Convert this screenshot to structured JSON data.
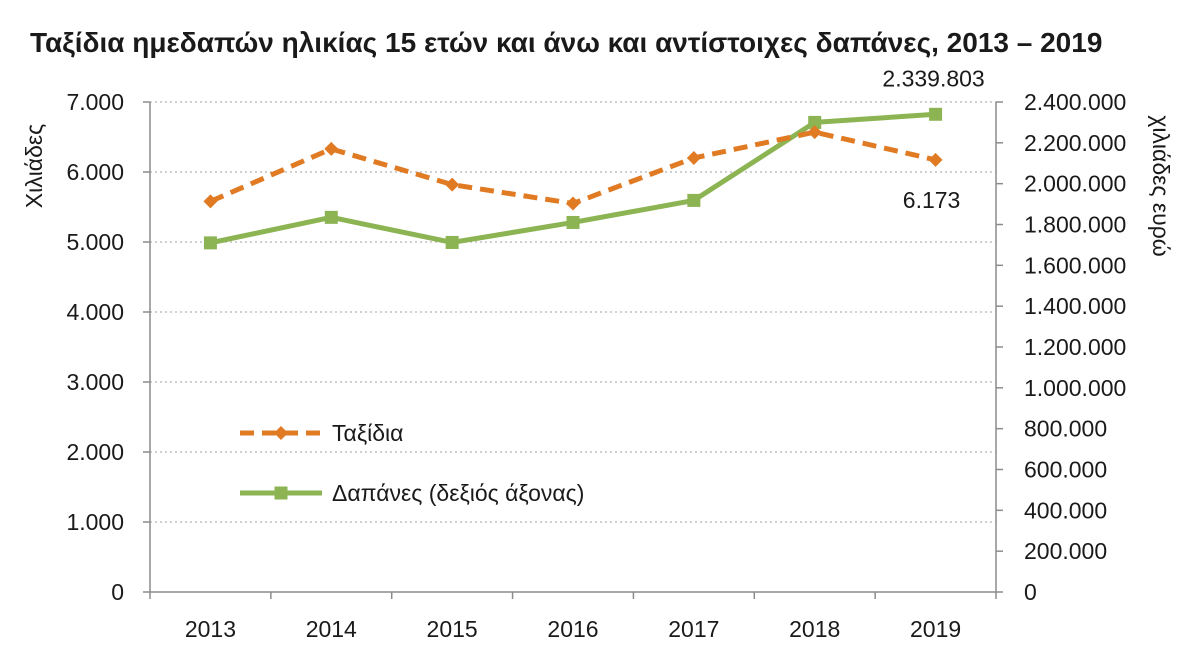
{
  "chart_data": {
    "type": "line",
    "title": "Ταξίδια ημεδαπών ηλικίας 15 ετών και άνω και αντίστοιχες δαπάνες, 2013 – 2019",
    "categories": [
      "2013",
      "2014",
      "2015",
      "2016",
      "2017",
      "2018",
      "2019"
    ],
    "y_left": {
      "label": "Χιλιάδες",
      "range": [
        0,
        7000
      ],
      "ticks": [
        "0",
        "1.000",
        "2.000",
        "3.000",
        "4.000",
        "5.000",
        "6.000",
        "7.000"
      ]
    },
    "y_right": {
      "label": "χιλιάδες ευρώ",
      "range": [
        0,
        2400000
      ],
      "ticks": [
        "0",
        "200.000",
        "400.000",
        "600.000",
        "800.000",
        "1.000.000",
        "1.200.000",
        "1.400.000",
        "1.600.000",
        "1.800.000",
        "2.000.000",
        "2.200.000",
        "2.400.000"
      ]
    },
    "grid": "horizontal dotted",
    "legend_position": "inside-left",
    "series": [
      {
        "name": "Ταξίδια",
        "axis": "left",
        "style": "dashed",
        "marker": "diamond",
        "color": "#e07b24",
        "values": [
          5580,
          6330,
          5820,
          5550,
          6200,
          6570,
          6173
        ],
        "labels": [
          {
            "index": 6,
            "text": "6.173"
          }
        ]
      },
      {
        "name": "Δαπάνες (δεξιός άξονας)",
        "axis": "right",
        "style": "solid",
        "marker": "square",
        "color": "#8cb453",
        "values": [
          1710000,
          1835000,
          1712000,
          1810000,
          1918000,
          2300000,
          2339803
        ],
        "labels": [
          {
            "index": 6,
            "text": "2.339.803"
          }
        ]
      }
    ]
  }
}
